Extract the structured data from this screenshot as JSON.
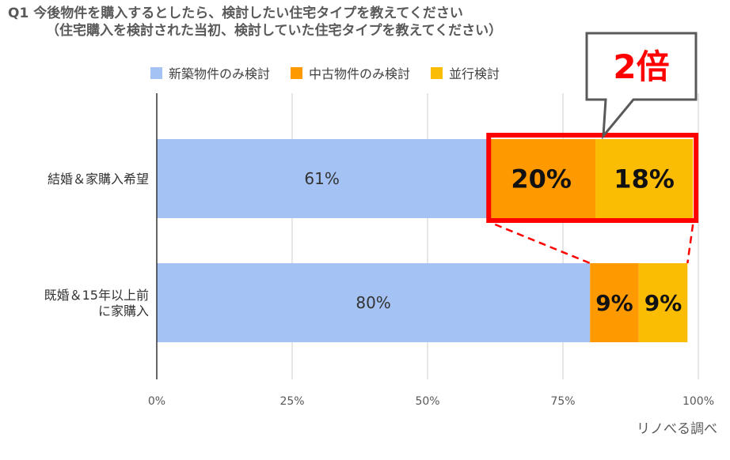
{
  "chart_data": {
    "type": "bar",
    "orientation": "horizontal",
    "stacked": true,
    "title": "Q1 今後物件を購入するとしたら、検討したい住宅タイプを教えてください",
    "subtitle": "（住宅購入を検討された当初、検討していた住宅タイプを教えてください）",
    "categories": [
      {
        "lines": [
          "結婚＆家購入希望"
        ]
      },
      {
        "lines": [
          "既婚＆15年以上前",
          "に家購入"
        ]
      }
    ],
    "series": [
      {
        "name": "新築物件のみ検討",
        "color": "#a4c2f4",
        "values": [
          61,
          80
        ],
        "labels": [
          "61%",
          "80%"
        ]
      },
      {
        "name": "中古物件のみ検討",
        "color": "#ff9900",
        "values": [
          20,
          9
        ],
        "labels": [
          "20%",
          "9%"
        ]
      },
      {
        "name": "並行検討",
        "color": "#fbbc04",
        "values": [
          18,
          9
        ],
        "labels": [
          "18%",
          "9%"
        ]
      }
    ],
    "xlim": [
      0,
      100
    ],
    "x_ticks": [
      {
        "value": 0,
        "label": "0%"
      },
      {
        "value": 25,
        "label": "25%"
      },
      {
        "value": 50,
        "label": "50%"
      },
      {
        "value": 75,
        "label": "75%"
      },
      {
        "value": 100,
        "label": "100%"
      }
    ],
    "grid": true,
    "legend_position": "top",
    "annotation": {
      "text": "2倍",
      "color": "#ff0000"
    },
    "highlight_color": "#ff0000"
  },
  "source_note": "リノべる調べ"
}
